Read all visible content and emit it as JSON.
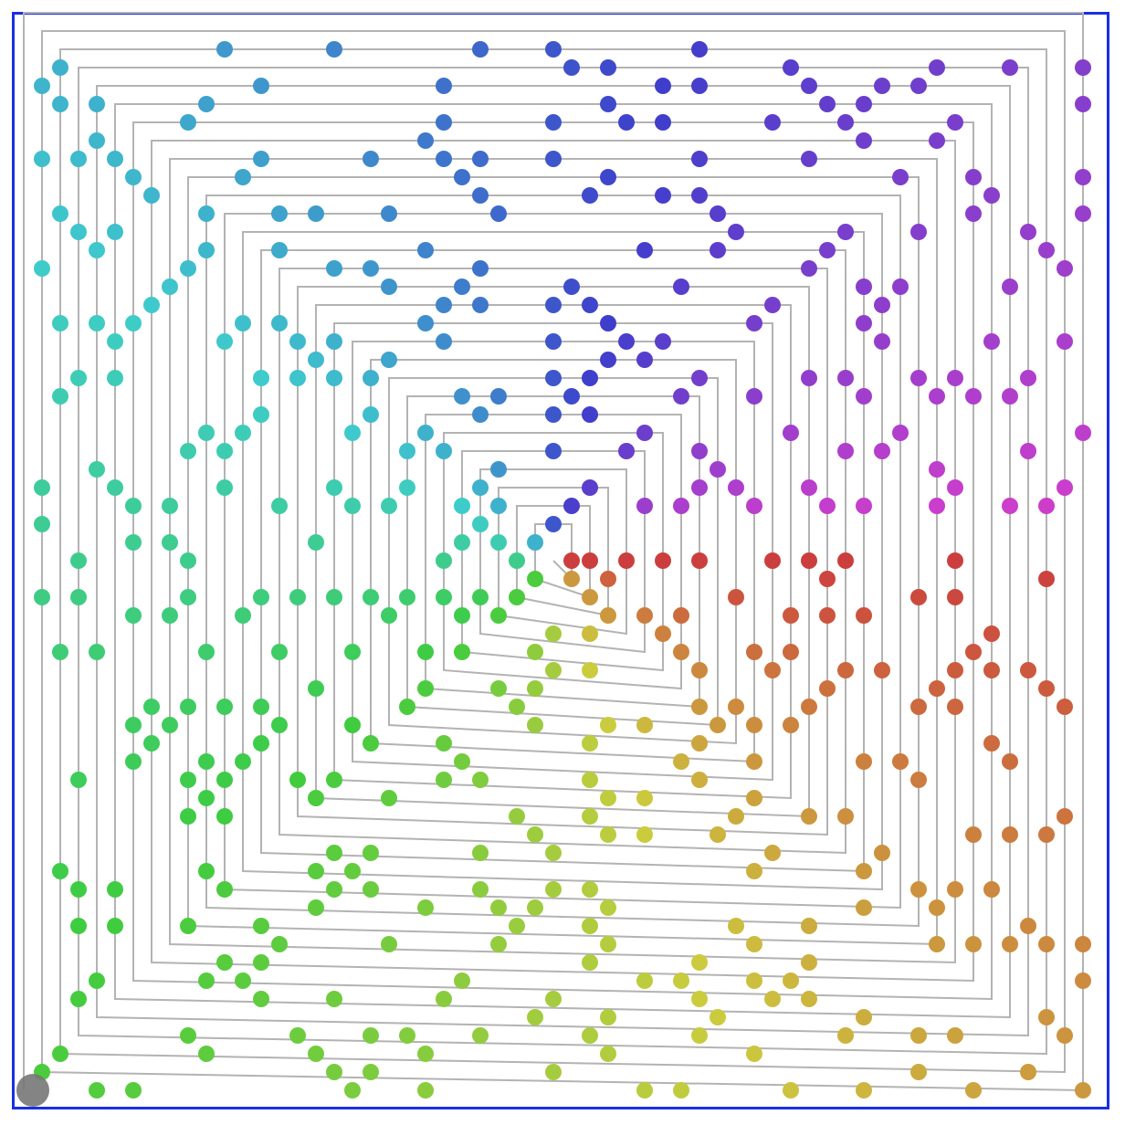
{
  "diagram": {
    "kind": "prime-spiral",
    "rings": 29,
    "colors": {
      "frame": "#1a2fe0",
      "path": "#b3b3b3",
      "start_marker": "#777777"
    },
    "hue_spectrum": [
      "red",
      "orange",
      "yellow",
      "green",
      "teal",
      "blue",
      "purple",
      "magenta"
    ]
  }
}
